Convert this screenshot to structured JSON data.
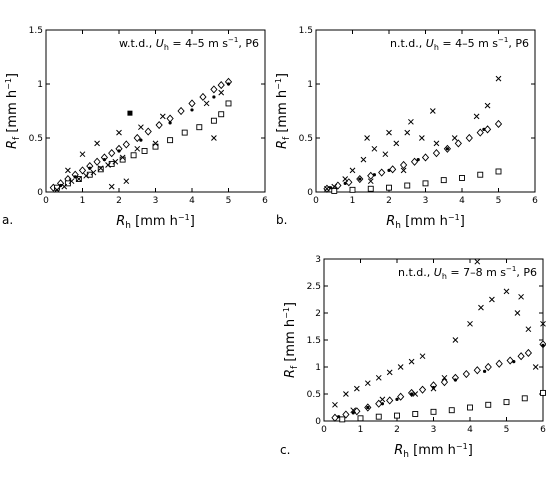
{
  "chart_data": [
    {
      "type": "scatter",
      "panel_label": "a.",
      "annotation": "w.t.d., U_h = 4–5 m s⁻¹, P6",
      "annotation_parts": {
        "prefix": "w.t.d., ",
        "var": "U",
        "sub": "h",
        "rest": " = 4–5 m s",
        "sup": "−1",
        "tail": ", P6"
      },
      "xlabel": {
        "var": "R",
        "sub": "h",
        "unit": " [mm h",
        "sup": "−1",
        "close": "]"
      },
      "ylabel": {
        "var": "R",
        "sub": "f",
        "unit": " [mm h",
        "sup": "−1",
        "close": "]"
      },
      "xlim": [
        0,
        6
      ],
      "ylim": [
        0,
        1.5
      ],
      "xticks": [
        0,
        1,
        2,
        3,
        4,
        5,
        6
      ],
      "xtick_labels": [
        "0",
        "1",
        "2",
        "3",
        "4",
        "5",
        "6"
      ],
      "yticks": [
        0,
        0.5,
        1,
        1.5
      ],
      "ytick_labels": [
        "0",
        "0.5",
        "1",
        "1.5"
      ],
      "grid": false,
      "series": [
        {
          "marker": "diamond",
          "x": [
            0.2,
            0.4,
            0.6,
            0.8,
            1.0,
            1.2,
            1.4,
            1.6,
            1.8,
            2.0,
            2.2,
            2.5,
            2.8,
            3.1,
            3.4,
            3.7,
            4.0,
            4.3,
            4.6,
            4.8,
            5.0
          ],
          "y": [
            0.04,
            0.08,
            0.12,
            0.16,
            0.2,
            0.24,
            0.28,
            0.32,
            0.36,
            0.4,
            0.44,
            0.5,
            0.56,
            0.62,
            0.68,
            0.75,
            0.82,
            0.88,
            0.95,
            0.99,
            1.02
          ]
        },
        {
          "marker": "square",
          "x": [
            0.3,
            0.6,
            0.9,
            1.2,
            1.5,
            1.8,
            2.1,
            2.4,
            2.7,
            3.0,
            3.4,
            3.8,
            4.2,
            4.6,
            4.8,
            5.0
          ],
          "y": [
            0.04,
            0.08,
            0.12,
            0.16,
            0.21,
            0.26,
            0.3,
            0.34,
            0.38,
            0.42,
            0.48,
            0.55,
            0.6,
            0.66,
            0.72,
            0.82
          ]
        },
        {
          "marker": "x",
          "x": [
            0.3,
            0.5,
            0.7,
            0.9,
            1.1,
            1.3,
            1.5,
            1.7,
            1.9,
            2.1,
            2.5,
            3.0,
            1.0,
            1.4,
            2.0,
            2.6,
            3.2,
            4.4,
            4.6,
            4.8,
            0.6,
            1.8,
            2.2
          ],
          "y": [
            0.02,
            0.05,
            0.1,
            0.12,
            0.15,
            0.18,
            0.22,
            0.25,
            0.28,
            0.32,
            0.4,
            0.45,
            0.35,
            0.45,
            0.55,
            0.6,
            0.7,
            0.82,
            0.5,
            0.92,
            0.2,
            0.05,
            0.1
          ]
        },
        {
          "marker": "dot",
          "x": [
            0.4,
            0.8,
            1.2,
            1.6,
            2.0,
            2.6,
            3.4,
            4.0,
            4.6,
            5.0
          ],
          "y": [
            0.06,
            0.14,
            0.22,
            0.3,
            0.38,
            0.48,
            0.64,
            0.76,
            0.88,
            1.0
          ]
        },
        {
          "marker": "filled-square",
          "x": [
            2.3
          ],
          "y": [
            0.73
          ]
        }
      ]
    },
    {
      "type": "scatter",
      "panel_label": "b.",
      "annotation": "n.t.d., U_h = 4–5 m s⁻¹, P6",
      "annotation_parts": {
        "prefix": "n.t.d., ",
        "var": "U",
        "sub": "h",
        "rest": " = 4–5 m s",
        "sup": "−1",
        "tail": ", P6"
      },
      "xlabel": {
        "var": "R",
        "sub": "h",
        "unit": " [mm h",
        "sup": "−1",
        "close": "]"
      },
      "ylabel": {
        "var": "R",
        "sub": "f",
        "unit": " [mm h",
        "sup": "−1",
        "close": "]"
      },
      "xlim": [
        0,
        6
      ],
      "ylim": [
        0,
        1.5
      ],
      "xticks": [
        0,
        1,
        2,
        3,
        4,
        5,
        6
      ],
      "xtick_labels": [
        "0",
        "1",
        "2",
        "3",
        "4",
        "5",
        "6"
      ],
      "yticks": [
        0,
        0.5,
        1,
        1.5
      ],
      "ytick_labels": [
        "0",
        "0.5",
        "1",
        "1.5"
      ],
      "grid": false,
      "series": [
        {
          "marker": "diamond",
          "x": [
            0.3,
            0.6,
            0.9,
            1.2,
            1.5,
            1.8,
            2.1,
            2.4,
            2.7,
            3.0,
            3.3,
            3.6,
            3.9,
            4.2,
            4.5,
            4.7,
            5.0
          ],
          "y": [
            0.03,
            0.06,
            0.09,
            0.12,
            0.15,
            0.18,
            0.21,
            0.25,
            0.28,
            0.32,
            0.36,
            0.4,
            0.45,
            0.5,
            0.55,
            0.58,
            0.63
          ]
        },
        {
          "marker": "square",
          "x": [
            0.5,
            1.0,
            1.5,
            2.0,
            2.5,
            3.0,
            3.5,
            4.0,
            4.5,
            5.0
          ],
          "y": [
            0.01,
            0.02,
            0.03,
            0.04,
            0.06,
            0.08,
            0.11,
            0.13,
            0.16,
            0.19
          ]
        },
        {
          "marker": "x",
          "x": [
            0.3,
            0.5,
            0.8,
            1.0,
            1.3,
            1.6,
            1.9,
            2.2,
            2.5,
            2.9,
            3.3,
            1.4,
            2.0,
            2.6,
            3.2,
            3.8,
            4.4,
            4.7,
            5.0,
            1.5,
            2.4
          ],
          "y": [
            0.03,
            0.05,
            0.12,
            0.2,
            0.3,
            0.4,
            0.35,
            0.45,
            0.55,
            0.5,
            0.45,
            0.5,
            0.55,
            0.65,
            0.75,
            0.5,
            0.7,
            0.8,
            1.05,
            0.1,
            0.2
          ]
        },
        {
          "marker": "dot",
          "x": [
            0.4,
            0.8,
            1.2,
            1.6,
            2.0,
            2.8,
            3.6,
            4.6
          ],
          "y": [
            0.04,
            0.08,
            0.12,
            0.16,
            0.2,
            0.3,
            0.4,
            0.58
          ]
        },
        {
          "marker": "filled-square",
          "x": [],
          "y": []
        }
      ]
    },
    {
      "type": "scatter",
      "panel_label": "c.",
      "annotation": "n.t.d., U_h = 7–8 m s⁻¹, P6",
      "annotation_parts": {
        "prefix": "n.t.d., ",
        "var": "U",
        "sub": "h",
        "rest": " = 7–8 m s",
        "sup": "−1",
        "tail": ", P6"
      },
      "xlabel": {
        "var": "R",
        "sub": "h",
        "unit": " [mm h",
        "sup": "−1",
        "close": "]"
      },
      "ylabel": {
        "var": "R",
        "sub": "f",
        "unit": " [mm h",
        "sup": "−1",
        "close": "]"
      },
      "xlim": [
        0,
        6
      ],
      "ylim": [
        0,
        3
      ],
      "xticks": [
        0,
        1,
        2,
        3,
        4,
        5,
        6
      ],
      "xtick_labels": [
        "0",
        "1",
        "2",
        "3",
        "4",
        "5",
        "6"
      ],
      "yticks": [
        0,
        0.5,
        1,
        1.5,
        2,
        2.5,
        3
      ],
      "ytick_labels": [
        "0",
        "0.5",
        "1",
        "1.5",
        "2",
        "2.5",
        "3"
      ],
      "grid": false,
      "series": [
        {
          "marker": "diamond",
          "x": [
            0.3,
            0.6,
            0.9,
            1.2,
            1.5,
            1.8,
            2.1,
            2.4,
            2.7,
            3.0,
            3.3,
            3.6,
            3.9,
            4.2,
            4.5,
            4.8,
            5.1,
            5.4,
            5.6,
            6.0
          ],
          "y": [
            0.06,
            0.12,
            0.18,
            0.25,
            0.32,
            0.38,
            0.45,
            0.52,
            0.58,
            0.66,
            0.72,
            0.8,
            0.87,
            0.94,
            1.0,
            1.06,
            1.12,
            1.2,
            1.26,
            1.42
          ]
        },
        {
          "marker": "square",
          "x": [
            0.5,
            1.0,
            1.5,
            2.0,
            2.5,
            3.0,
            3.5,
            4.0,
            4.5,
            5.0,
            5.5,
            6.0
          ],
          "y": [
            0.03,
            0.05,
            0.08,
            0.1,
            0.13,
            0.17,
            0.2,
            0.25,
            0.3,
            0.35,
            0.42,
            0.52
          ]
        },
        {
          "marker": "x",
          "x": [
            0.3,
            0.6,
            0.9,
            1.2,
            1.5,
            1.8,
            2.1,
            2.4,
            2.7,
            3.0,
            3.3,
            3.6,
            4.0,
            4.3,
            4.6,
            5.0,
            5.3,
            5.6,
            6.0,
            0.8,
            1.6,
            2.5,
            4.2,
            5.4,
            5.8
          ],
          "y": [
            0.3,
            0.5,
            0.6,
            0.7,
            0.8,
            0.9,
            1.0,
            1.1,
            1.2,
            0.6,
            0.8,
            1.5,
            1.8,
            2.1,
            2.25,
            2.4,
            2.0,
            1.7,
            1.8,
            0.2,
            0.4,
            0.5,
            2.95,
            2.3,
            1.0
          ]
        },
        {
          "marker": "dot",
          "x": [
            0.4,
            0.8,
            1.2,
            1.6,
            2.0,
            2.4,
            3.0,
            3.6,
            4.4,
            5.2,
            6.0
          ],
          "y": [
            0.08,
            0.15,
            0.25,
            0.32,
            0.4,
            0.5,
            0.62,
            0.76,
            0.92,
            1.1,
            1.4
          ]
        },
        {
          "marker": "filled-square",
          "x": [],
          "y": []
        }
      ]
    }
  ]
}
